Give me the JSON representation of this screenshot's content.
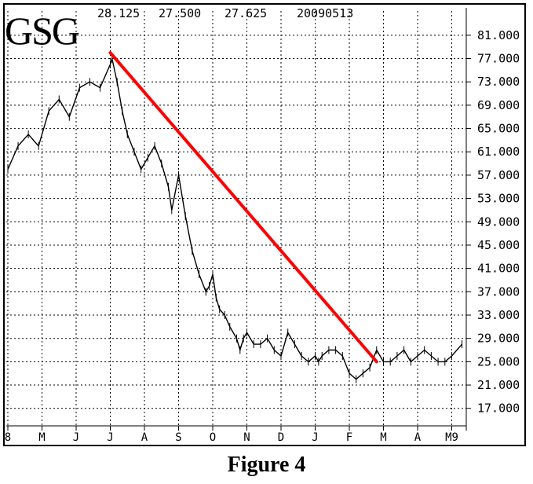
{
  "header": {
    "symbol": "GSG",
    "values": [
      "28.125",
      "27.500",
      "27.625",
      "20090513"
    ]
  },
  "caption": "Figure 4",
  "chart_data": {
    "type": "line",
    "title": "GSG",
    "xlabel": "",
    "ylabel": "",
    "ylim": [
      14,
      83
    ],
    "grid": true,
    "y_ticks": [
      "81.000",
      "77.000",
      "73.000",
      "69.000",
      "65.000",
      "61.000",
      "57.000",
      "53.000",
      "49.000",
      "45.000",
      "41.000",
      "37.000",
      "33.000",
      "29.000",
      "25.000",
      "21.000",
      "17.000"
    ],
    "x_ticks": [
      "8",
      "M",
      "J",
      "J",
      "A",
      "S",
      "O",
      "N",
      "D",
      "J",
      "F",
      "M",
      "A",
      "M9"
    ],
    "series": [
      {
        "color": "#000000",
        "x": [
          0,
          0.3,
          0.6,
          0.9,
          1.2,
          1.5,
          1.8,
          2.1,
          2.4,
          2.7,
          3.0,
          3.05,
          3.2,
          3.35,
          3.5,
          3.7,
          3.9,
          4.1,
          4.3,
          4.5,
          4.7,
          4.8,
          5.0,
          5.2,
          5.4,
          5.6,
          5.8,
          5.9,
          6.0,
          6.1,
          6.2,
          6.35,
          6.5,
          6.7,
          6.8,
          6.9,
          7.0,
          7.2,
          7.4,
          7.6,
          7.8,
          8.0,
          8.2,
          8.4,
          8.6,
          8.8,
          9.0,
          9.1,
          9.2,
          9.4,
          9.6,
          9.8,
          10.0,
          10.2,
          10.4,
          10.6,
          10.8,
          11.0,
          11.2,
          11.4,
          11.6,
          11.8,
          12.0,
          12.2,
          12.4,
          12.6,
          12.8,
          13.0,
          13.3
        ],
        "values": [
          58,
          62,
          64,
          62,
          68,
          70,
          67,
          72,
          73,
          72,
          76,
          77,
          73,
          68,
          64,
          61,
          58,
          60,
          62,
          59,
          55,
          51,
          57,
          50,
          44,
          40,
          37,
          38,
          40,
          36,
          34,
          33,
          31,
          29,
          27,
          29,
          30,
          28,
          28,
          29,
          27,
          26,
          30,
          28,
          26,
          25,
          26,
          25,
          26,
          27,
          27,
          26,
          23,
          22,
          23,
          24,
          27,
          25,
          25,
          26,
          27,
          25,
          26,
          27,
          26,
          25,
          25,
          26,
          28
        ]
      }
    ],
    "trendline": {
      "color": "#ff0000",
      "x": [
        3.0,
        10.8
      ],
      "values": [
        78,
        25
      ]
    }
  }
}
